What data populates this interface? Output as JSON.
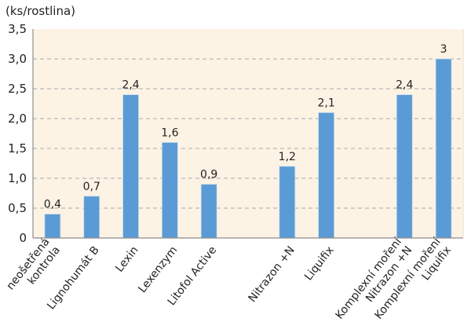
{
  "chart_data": {
    "type": "bar",
    "ylabel": "(ks/rostlina)",
    "ylim": [
      0,
      3.5
    ],
    "yticks": [
      "0",
      "0,5",
      "1,0",
      "1,5",
      "2,0",
      "2,5",
      "3,0",
      "3,5"
    ],
    "grid": true,
    "categories": [
      [
        "neošetřená",
        "kontrola"
      ],
      [
        "Lignohumát B"
      ],
      [
        "Lexin"
      ],
      [
        "Lexenzym"
      ],
      [
        "Litofol Active"
      ],
      [],
      [
        "Nitrazon +N"
      ],
      [
        "Liquifix"
      ],
      [],
      [
        "Komplexní moření",
        "Nitrazon +N"
      ],
      [
        "Komplexní moření",
        "Liquifix"
      ]
    ],
    "values": [
      0.4,
      0.7,
      2.4,
      1.6,
      0.9,
      null,
      1.2,
      2.1,
      null,
      2.4,
      3.0
    ],
    "data_labels": [
      "0,4",
      "0,7",
      "2,4",
      "1,6",
      "0,9",
      "",
      "1,2",
      "2,1",
      "",
      "2,4",
      "3"
    ],
    "colors": {
      "bar": "#5b9bd5",
      "plot_background": "#fdf3e4",
      "grid": "#a7a9ac",
      "axis": "#8c8c8c"
    }
  }
}
